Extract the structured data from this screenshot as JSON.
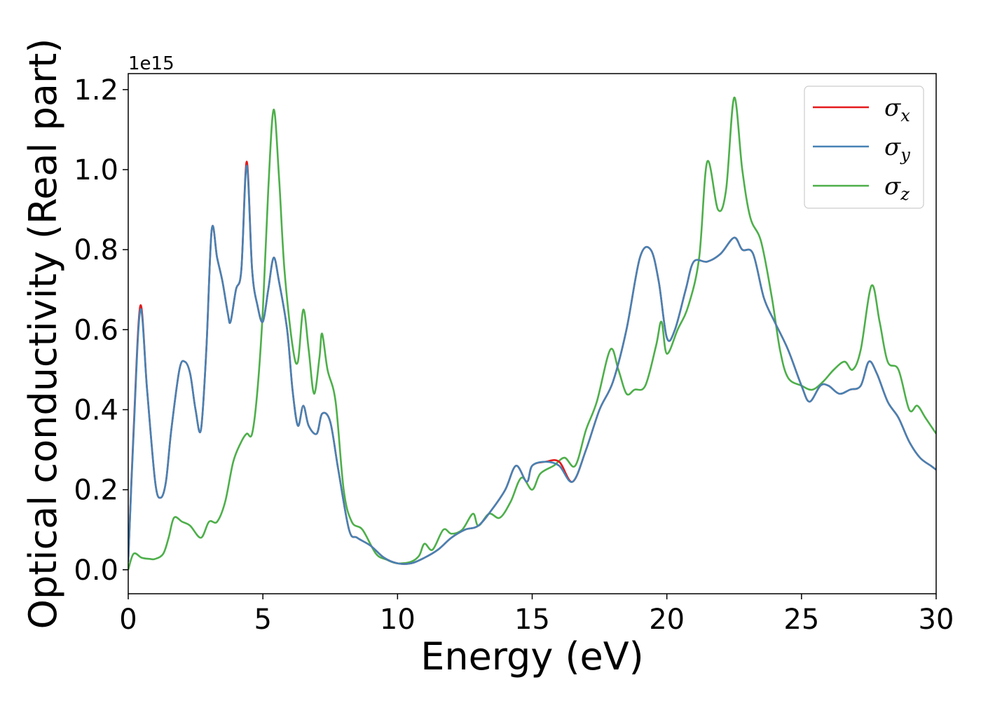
{
  "chart_data": {
    "type": "line",
    "title": "",
    "xlabel": "Energy (eV)",
    "ylabel": "Optical conductivity (Real part)",
    "y_offset_label": "1e15",
    "xlim": [
      0,
      30
    ],
    "ylim": [
      -0.06,
      1.24
    ],
    "x_ticks": [
      0,
      5,
      10,
      15,
      20,
      25,
      30
    ],
    "y_ticks": [
      0.0,
      0.2,
      0.4,
      0.6,
      0.8,
      1.0,
      1.2
    ],
    "x_tick_labels": [
      "0",
      "5",
      "10",
      "15",
      "20",
      "25",
      "30"
    ],
    "y_tick_labels": [
      "0.0",
      "0.2",
      "0.4",
      "0.6",
      "0.8",
      "1.0",
      "1.2"
    ],
    "grid": false,
    "legend_position": "top-right",
    "series": [
      {
        "name": "σx",
        "legend_base": "σ",
        "legend_sub": "x",
        "color": "#e41a1c",
        "points": [
          [
            0,
            0.02
          ],
          [
            0.2,
            0.35
          ],
          [
            0.45,
            0.66
          ],
          [
            0.7,
            0.45
          ],
          [
            1.0,
            0.22
          ],
          [
            1.2,
            0.18
          ],
          [
            1.4,
            0.22
          ],
          [
            1.6,
            0.35
          ],
          [
            1.9,
            0.5
          ],
          [
            2.1,
            0.52
          ],
          [
            2.3,
            0.49
          ],
          [
            2.5,
            0.4
          ],
          [
            2.7,
            0.35
          ],
          [
            2.9,
            0.55
          ],
          [
            3.1,
            0.85
          ],
          [
            3.3,
            0.78
          ],
          [
            3.5,
            0.72
          ],
          [
            3.7,
            0.64
          ],
          [
            3.8,
            0.62
          ],
          [
            4.0,
            0.7
          ],
          [
            4.2,
            0.75
          ],
          [
            4.4,
            1.02
          ],
          [
            4.6,
            0.75
          ],
          [
            4.8,
            0.66
          ],
          [
            5.0,
            0.62
          ],
          [
            5.2,
            0.7
          ],
          [
            5.4,
            0.78
          ],
          [
            5.6,
            0.72
          ],
          [
            5.9,
            0.6
          ],
          [
            6.1,
            0.45
          ],
          [
            6.3,
            0.36
          ],
          [
            6.5,
            0.41
          ],
          [
            6.7,
            0.36
          ],
          [
            7.0,
            0.34
          ],
          [
            7.2,
            0.39
          ],
          [
            7.5,
            0.37
          ],
          [
            7.8,
            0.25
          ],
          [
            8.2,
            0.1
          ],
          [
            8.5,
            0.08
          ],
          [
            9.0,
            0.06
          ],
          [
            9.5,
            0.03
          ],
          [
            10.0,
            0.016
          ],
          [
            10.5,
            0.016
          ],
          [
            11.0,
            0.03
          ],
          [
            11.5,
            0.05
          ],
          [
            12.0,
            0.08
          ],
          [
            12.5,
            0.1
          ],
          [
            13.0,
            0.11
          ],
          [
            13.5,
            0.15
          ],
          [
            14.0,
            0.2
          ],
          [
            14.4,
            0.26
          ],
          [
            14.8,
            0.22
          ],
          [
            15.0,
            0.26
          ],
          [
            15.5,
            0.27
          ],
          [
            16.0,
            0.27
          ],
          [
            16.5,
            0.22
          ],
          [
            17.0,
            0.3
          ],
          [
            17.5,
            0.4
          ],
          [
            18.0,
            0.47
          ],
          [
            18.5,
            0.6
          ],
          [
            19.0,
            0.78
          ],
          [
            19.4,
            0.8
          ],
          [
            19.7,
            0.72
          ],
          [
            20.0,
            0.58
          ],
          [
            20.3,
            0.6
          ],
          [
            20.7,
            0.7
          ],
          [
            21.0,
            0.77
          ],
          [
            21.5,
            0.77
          ],
          [
            22.0,
            0.79
          ],
          [
            22.5,
            0.83
          ],
          [
            22.8,
            0.8
          ],
          [
            23.2,
            0.79
          ],
          [
            23.6,
            0.68
          ],
          [
            24.0,
            0.62
          ],
          [
            24.5,
            0.55
          ],
          [
            25.0,
            0.46
          ],
          [
            25.3,
            0.42
          ],
          [
            25.7,
            0.46
          ],
          [
            26.0,
            0.46
          ],
          [
            26.4,
            0.44
          ],
          [
            26.8,
            0.45
          ],
          [
            27.2,
            0.46
          ],
          [
            27.5,
            0.52
          ],
          [
            27.8,
            0.49
          ],
          [
            28.2,
            0.42
          ],
          [
            28.6,
            0.38
          ],
          [
            29.0,
            0.32
          ],
          [
            29.4,
            0.28
          ],
          [
            29.8,
            0.26
          ],
          [
            30.0,
            0.25
          ]
        ]
      },
      {
        "name": "σy",
        "legend_base": "σ",
        "legend_sub": "y",
        "color": "#4682b4",
        "points": [
          [
            0,
            0.02
          ],
          [
            0.2,
            0.34
          ],
          [
            0.45,
            0.65
          ],
          [
            0.7,
            0.45
          ],
          [
            1.0,
            0.22
          ],
          [
            1.2,
            0.18
          ],
          [
            1.4,
            0.22
          ],
          [
            1.6,
            0.35
          ],
          [
            1.9,
            0.5
          ],
          [
            2.1,
            0.52
          ],
          [
            2.3,
            0.49
          ],
          [
            2.5,
            0.4
          ],
          [
            2.7,
            0.35
          ],
          [
            2.9,
            0.55
          ],
          [
            3.1,
            0.85
          ],
          [
            3.3,
            0.78
          ],
          [
            3.5,
            0.72
          ],
          [
            3.7,
            0.64
          ],
          [
            3.8,
            0.62
          ],
          [
            4.0,
            0.7
          ],
          [
            4.2,
            0.75
          ],
          [
            4.4,
            1.01
          ],
          [
            4.6,
            0.75
          ],
          [
            4.8,
            0.66
          ],
          [
            5.0,
            0.62
          ],
          [
            5.2,
            0.7
          ],
          [
            5.4,
            0.78
          ],
          [
            5.6,
            0.72
          ],
          [
            5.9,
            0.6
          ],
          [
            6.1,
            0.45
          ],
          [
            6.3,
            0.36
          ],
          [
            6.5,
            0.41
          ],
          [
            6.7,
            0.36
          ],
          [
            7.0,
            0.34
          ],
          [
            7.2,
            0.39
          ],
          [
            7.5,
            0.37
          ],
          [
            7.8,
            0.25
          ],
          [
            8.2,
            0.1
          ],
          [
            8.5,
            0.08
          ],
          [
            9.0,
            0.06
          ],
          [
            9.5,
            0.03
          ],
          [
            10.0,
            0.016
          ],
          [
            10.5,
            0.016
          ],
          [
            11.0,
            0.03
          ],
          [
            11.5,
            0.05
          ],
          [
            12.0,
            0.08
          ],
          [
            12.5,
            0.1
          ],
          [
            13.0,
            0.11
          ],
          [
            13.5,
            0.15
          ],
          [
            14.0,
            0.2
          ],
          [
            14.4,
            0.26
          ],
          [
            14.8,
            0.22
          ],
          [
            15.0,
            0.26
          ],
          [
            15.5,
            0.27
          ],
          [
            16.0,
            0.26
          ],
          [
            16.5,
            0.22
          ],
          [
            17.0,
            0.3
          ],
          [
            17.5,
            0.4
          ],
          [
            18.0,
            0.47
          ],
          [
            18.5,
            0.6
          ],
          [
            19.0,
            0.78
          ],
          [
            19.4,
            0.8
          ],
          [
            19.7,
            0.72
          ],
          [
            20.0,
            0.58
          ],
          [
            20.3,
            0.6
          ],
          [
            20.7,
            0.7
          ],
          [
            21.0,
            0.77
          ],
          [
            21.5,
            0.77
          ],
          [
            22.0,
            0.79
          ],
          [
            22.5,
            0.83
          ],
          [
            22.8,
            0.8
          ],
          [
            23.2,
            0.79
          ],
          [
            23.6,
            0.68
          ],
          [
            24.0,
            0.62
          ],
          [
            24.5,
            0.55
          ],
          [
            25.0,
            0.46
          ],
          [
            25.3,
            0.42
          ],
          [
            25.7,
            0.46
          ],
          [
            26.0,
            0.46
          ],
          [
            26.4,
            0.44
          ],
          [
            26.8,
            0.45
          ],
          [
            27.2,
            0.46
          ],
          [
            27.5,
            0.52
          ],
          [
            27.8,
            0.49
          ],
          [
            28.2,
            0.42
          ],
          [
            28.6,
            0.38
          ],
          [
            29.0,
            0.32
          ],
          [
            29.4,
            0.28
          ],
          [
            29.8,
            0.26
          ],
          [
            30.0,
            0.25
          ]
        ]
      },
      {
        "name": "σz",
        "legend_base": "σ",
        "legend_sub": "z",
        "color": "#4daf4a",
        "points": [
          [
            0,
            0.0
          ],
          [
            0.2,
            0.04
          ],
          [
            0.5,
            0.03
          ],
          [
            0.8,
            0.027
          ],
          [
            1.0,
            0.027
          ],
          [
            1.3,
            0.04
          ],
          [
            1.5,
            0.08
          ],
          [
            1.7,
            0.13
          ],
          [
            2.0,
            0.12
          ],
          [
            2.3,
            0.11
          ],
          [
            2.7,
            0.08
          ],
          [
            3.0,
            0.12
          ],
          [
            3.3,
            0.12
          ],
          [
            3.6,
            0.17
          ],
          [
            3.9,
            0.27
          ],
          [
            4.2,
            0.32
          ],
          [
            4.4,
            0.34
          ],
          [
            4.6,
            0.34
          ],
          [
            4.8,
            0.45
          ],
          [
            5.0,
            0.65
          ],
          [
            5.2,
            0.95
          ],
          [
            5.4,
            1.15
          ],
          [
            5.6,
            0.98
          ],
          [
            5.8,
            0.75
          ],
          [
            6.1,
            0.56
          ],
          [
            6.3,
            0.52
          ],
          [
            6.5,
            0.65
          ],
          [
            6.7,
            0.55
          ],
          [
            6.9,
            0.44
          ],
          [
            7.1,
            0.53
          ],
          [
            7.2,
            0.59
          ],
          [
            7.4,
            0.5
          ],
          [
            7.7,
            0.42
          ],
          [
            8.0,
            0.2
          ],
          [
            8.3,
            0.12
          ],
          [
            8.7,
            0.1
          ],
          [
            9.2,
            0.04
          ],
          [
            9.6,
            0.025
          ],
          [
            10.0,
            0.016
          ],
          [
            10.5,
            0.02
          ],
          [
            10.8,
            0.035
          ],
          [
            11.0,
            0.065
          ],
          [
            11.3,
            0.05
          ],
          [
            11.7,
            0.1
          ],
          [
            12.0,
            0.09
          ],
          [
            12.4,
            0.1
          ],
          [
            12.8,
            0.14
          ],
          [
            13.0,
            0.11
          ],
          [
            13.4,
            0.14
          ],
          [
            13.8,
            0.13
          ],
          [
            14.2,
            0.17
          ],
          [
            14.6,
            0.23
          ],
          [
            15.0,
            0.2
          ],
          [
            15.3,
            0.24
          ],
          [
            15.8,
            0.26
          ],
          [
            16.2,
            0.28
          ],
          [
            16.6,
            0.26
          ],
          [
            17.0,
            0.35
          ],
          [
            17.4,
            0.42
          ],
          [
            17.9,
            0.55
          ],
          [
            18.2,
            0.5
          ],
          [
            18.5,
            0.44
          ],
          [
            18.8,
            0.45
          ],
          [
            19.2,
            0.46
          ],
          [
            19.6,
            0.56
          ],
          [
            19.8,
            0.62
          ],
          [
            20.0,
            0.54
          ],
          [
            20.4,
            0.6
          ],
          [
            20.8,
            0.66
          ],
          [
            21.2,
            0.78
          ],
          [
            21.5,
            1.02
          ],
          [
            21.9,
            0.9
          ],
          [
            22.2,
            0.95
          ],
          [
            22.5,
            1.18
          ],
          [
            22.8,
            1.0
          ],
          [
            23.1,
            0.88
          ],
          [
            23.5,
            0.82
          ],
          [
            23.9,
            0.68
          ],
          [
            24.2,
            0.55
          ],
          [
            24.5,
            0.48
          ],
          [
            25.0,
            0.46
          ],
          [
            25.4,
            0.45
          ],
          [
            25.8,
            0.47
          ],
          [
            26.2,
            0.5
          ],
          [
            26.6,
            0.52
          ],
          [
            26.9,
            0.5
          ],
          [
            27.2,
            0.55
          ],
          [
            27.6,
            0.71
          ],
          [
            27.9,
            0.62
          ],
          [
            28.2,
            0.52
          ],
          [
            28.6,
            0.5
          ],
          [
            29.0,
            0.4
          ],
          [
            29.3,
            0.41
          ],
          [
            29.6,
            0.38
          ],
          [
            30.0,
            0.34
          ]
        ]
      }
    ]
  }
}
